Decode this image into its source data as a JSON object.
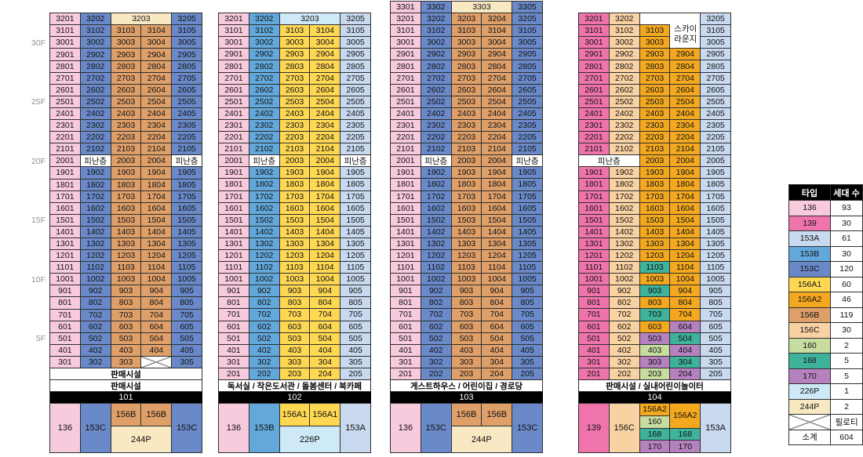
{
  "canvas": {
    "background": "#FFFFFF"
  },
  "colors": {
    "136": "#F8CADD",
    "139": "#EF74AB",
    "153A": "#C9D9F0",
    "153B": "#63A8DB",
    "153C": "#6A89C8",
    "156A1": "#FFD853",
    "156A2": "#F3A81F",
    "156B": "#DE9F69",
    "156C": "#F9D2A3",
    "160": "#C7DC9F",
    "168": "#3EB29B",
    "170": "#B681BF",
    "226P": "#CEE9F8",
    "244P": "#F9E9C3",
    "REF": "#FFFFFF"
  },
  "floor_axis": {
    "labels": [
      {
        "text": "30F",
        "floor": 30
      },
      {
        "text": "25F",
        "floor": 25
      },
      {
        "text": "20F",
        "floor": 20
      },
      {
        "text": "15F",
        "floor": 15
      },
      {
        "text": "10F",
        "floor": 10
      },
      {
        "text": "5F",
        "floor": 5
      }
    ]
  },
  "refuge_label": "피난층",
  "buildings": [
    {
      "id": "101",
      "top_floor": 32,
      "amenities": [
        "판매시설",
        "판매시설"
      ],
      "rows": [
        [
          "3201|136",
          "3202|153C",
          "3203|244P|2",
          "3205|153C"
        ],
        [
          "3101|136",
          "3102|153C",
          "3103|156B",
          "3104|156B",
          "3105|153C"
        ],
        [
          "3001|136",
          "3002|153C",
          "3003|156B",
          "3004|156B",
          "3005|153C"
        ],
        [
          "2901|136",
          "2902|153C",
          "2903|156B",
          "2904|156B",
          "2905|153C"
        ],
        [
          "2801|136",
          "2802|153C",
          "2803|156B",
          "2804|156B",
          "2805|153C"
        ],
        [
          "2701|136",
          "2702|153C",
          "2703|156B",
          "2704|156B",
          "2705|153C"
        ],
        [
          "2601|136",
          "2602|153C",
          "2603|156B",
          "2604|156B",
          "2605|153C"
        ],
        [
          "2501|136",
          "2502|153C",
          "2503|156B",
          "2504|156B",
          "2505|153C"
        ],
        [
          "2401|136",
          "2402|153C",
          "2403|156B",
          "2404|156B",
          "2405|153C"
        ],
        [
          "2301|136",
          "2302|153C",
          "2303|156B",
          "2304|156B",
          "2305|153C"
        ],
        [
          "2201|136",
          "2202|153C",
          "2203|156B",
          "2204|156B",
          "2205|153C"
        ],
        [
          "2101|136",
          "2102|153C",
          "2103|156B",
          "2104|156B",
          "2105|153C"
        ],
        [
          "2001|136",
          "피난층|REF",
          "2003|156B",
          "2004|156B",
          "피난층|REF"
        ],
        [
          "1901|136",
          "1902|153C",
          "1903|156B",
          "1904|156B",
          "1905|153C"
        ],
        [
          "1801|136",
          "1802|153C",
          "1803|156B",
          "1804|156B",
          "1805|153C"
        ],
        [
          "1701|136",
          "1702|153C",
          "1703|156B",
          "1704|156B",
          "1705|153C"
        ],
        [
          "1601|136",
          "1602|153C",
          "1603|156B",
          "1604|156B",
          "1605|153C"
        ],
        [
          "1501|136",
          "1502|153C",
          "1503|156B",
          "1504|156B",
          "1505|153C"
        ],
        [
          "1401|136",
          "1402|153C",
          "1403|156B",
          "1404|156B",
          "1405|153C"
        ],
        [
          "1301|136",
          "1302|153C",
          "1303|156B",
          "1304|156B",
          "1305|153C"
        ],
        [
          "1201|136",
          "1202|153C",
          "1203|156B",
          "1204|156B",
          "1205|153C"
        ],
        [
          "1101|136",
          "1102|153C",
          "1103|156B",
          "1104|156B",
          "1105|153C"
        ],
        [
          "1001|136",
          "1002|153C",
          "1003|156B",
          "1004|156B",
          "1005|153C"
        ],
        [
          "901|136",
          "902|153C",
          "903|156B",
          "904|156B",
          "905|153C"
        ],
        [
          "801|136",
          "802|153C",
          "803|156B",
          "804|156B",
          "805|153C"
        ],
        [
          "701|136",
          "702|153C",
          "703|156B",
          "704|156B",
          "705|153C"
        ],
        [
          "601|136",
          "602|153C",
          "603|156B",
          "604|156B",
          "605|153C"
        ],
        [
          "501|136",
          "502|153C",
          "503|156B",
          "504|156B",
          "505|153C"
        ],
        [
          "401|136",
          "402|153C",
          "403|156B",
          "404|156B",
          "405|153C"
        ],
        [
          "301|136",
          "302|153C",
          "303|156B",
          "|X",
          "305|153C"
        ]
      ],
      "bottom": {
        "kind": "split",
        "c1": "136",
        "c2": "153C",
        "mid_top": [
          "156B",
          "156B"
        ],
        "mid_bottom": "244P",
        "c5": "153C"
      }
    },
    {
      "id": "102",
      "top_floor": 32,
      "amenities": [
        "독서실 / 작은도서관 / 돌봄센터 / 북카페"
      ],
      "rows": [
        [
          "3201|136",
          "3202|153B",
          "3203|226P|2",
          "3205|153A"
        ],
        [
          "3101|136",
          "3102|153B",
          "3103|156A1",
          "3104|156A1",
          "3105|153A"
        ],
        [
          "3001|136",
          "3002|153B",
          "3003|156A1",
          "3004|156A1",
          "3005|153A"
        ],
        [
          "2901|136",
          "2902|153B",
          "2903|156A1",
          "2904|156A1",
          "2905|153A"
        ],
        [
          "2801|136",
          "2802|153B",
          "2803|156A1",
          "2804|156A1",
          "2805|153A"
        ],
        [
          "2701|136",
          "2702|153B",
          "2703|156A1",
          "2704|156A1",
          "2705|153A"
        ],
        [
          "2601|136",
          "2602|153B",
          "2603|156A1",
          "2604|156A1",
          "2605|153A"
        ],
        [
          "2501|136",
          "2502|153B",
          "2503|156A1",
          "2504|156A1",
          "2505|153A"
        ],
        [
          "2401|136",
          "2402|153B",
          "2403|156A1",
          "2404|156A1",
          "2405|153A"
        ],
        [
          "2301|136",
          "2302|153B",
          "2303|156A1",
          "2304|156A1",
          "2305|153A"
        ],
        [
          "2201|136",
          "2202|153B",
          "2203|156A1",
          "2204|156A1",
          "2205|153A"
        ],
        [
          "2101|136",
          "2102|153B",
          "2103|156A1",
          "2104|156A1",
          "2105|153A"
        ],
        [
          "2001|136",
          "피난층|REF",
          "2003|156A1",
          "2004|156A1",
          "피난층|REF"
        ],
        [
          "1901|136",
          "1902|153B",
          "1903|156A1",
          "1904|156A1",
          "1905|153A"
        ],
        [
          "1801|136",
          "1802|153B",
          "1803|156A1",
          "1804|156A1",
          "1805|153A"
        ],
        [
          "1701|136",
          "1702|153B",
          "1703|156A1",
          "1704|156A1",
          "1705|153A"
        ],
        [
          "1601|136",
          "1602|153B",
          "1603|156A1",
          "1604|156A1",
          "1605|153A"
        ],
        [
          "1501|136",
          "1502|153B",
          "1503|156A1",
          "1504|156A1",
          "1505|153A"
        ],
        [
          "1401|136",
          "1402|153B",
          "1403|156A1",
          "1404|156A1",
          "1405|153A"
        ],
        [
          "1301|136",
          "1302|153B",
          "1303|156A1",
          "1304|156A1",
          "1305|153A"
        ],
        [
          "1201|136",
          "1202|153B",
          "1203|156A1",
          "1204|156A1",
          "1205|153A"
        ],
        [
          "1101|136",
          "1102|153B",
          "1103|156A1",
          "1104|156A1",
          "1105|153A"
        ],
        [
          "1001|136",
          "1002|153B",
          "1003|156A1",
          "1004|156A1",
          "1005|153A"
        ],
        [
          "901|136",
          "902|153B",
          "903|156A1",
          "904|156A1",
          "905|153A"
        ],
        [
          "801|136",
          "802|153B",
          "803|156A1",
          "804|156A1",
          "805|153A"
        ],
        [
          "701|136",
          "702|153B",
          "703|156A1",
          "704|156A1",
          "705|153A"
        ],
        [
          "601|136",
          "602|153B",
          "603|156A1",
          "604|156A1",
          "605|153A"
        ],
        [
          "501|136",
          "502|153B",
          "503|156A1",
          "504|156A1",
          "505|153A"
        ],
        [
          "401|136",
          "402|153B",
          "403|156A1",
          "404|156A1",
          "405|153A"
        ],
        [
          "301|136",
          "302|153B",
          "303|156A1",
          "304|156A1",
          "305|153A"
        ],
        [
          "201|136",
          "202|153B",
          "203|156A1",
          "204|156A1",
          "205|153A"
        ]
      ],
      "bottom": {
        "kind": "split",
        "c1": "136",
        "c2": "153B",
        "mid_top": [
          "156A1",
          "156A1"
        ],
        "mid_bottom": "226P",
        "c5": "153A"
      }
    },
    {
      "id": "103",
      "top_floor": 33,
      "amenities": [
        "게스트하우스 / 어린이집 / 경로당"
      ],
      "rows": [
        [
          "3301|136",
          "3302|153C",
          "3303|244P|2",
          "3305|153C"
        ],
        [
          "3201|136",
          "3202|153C",
          "3203|156B",
          "3204|156B",
          "3205|153C"
        ],
        [
          "3101|136",
          "3102|153C",
          "3103|156B",
          "3104|156B",
          "3105|153C"
        ],
        [
          "3001|136",
          "3002|153C",
          "3003|156B",
          "3004|156B",
          "3005|153C"
        ],
        [
          "2901|136",
          "2902|153C",
          "2903|156B",
          "2904|156B",
          "2905|153C"
        ],
        [
          "2801|136",
          "2802|153C",
          "2803|156B",
          "2804|156B",
          "2805|153C"
        ],
        [
          "2701|136",
          "2702|153C",
          "2703|156B",
          "2704|156B",
          "2705|153C"
        ],
        [
          "2601|136",
          "2602|153C",
          "2603|156B",
          "2604|156B",
          "2605|153C"
        ],
        [
          "2501|136",
          "2502|153C",
          "2503|156B",
          "2504|156B",
          "2505|153C"
        ],
        [
          "2401|136",
          "2402|153C",
          "2403|156B",
          "2404|156B",
          "2405|153C"
        ],
        [
          "2301|136",
          "2302|153C",
          "2303|156B",
          "2304|156B",
          "2305|153C"
        ],
        [
          "2201|136",
          "2202|153C",
          "2203|156B",
          "2204|156B",
          "2205|153C"
        ],
        [
          "2101|136",
          "2102|153C",
          "2103|156B",
          "2104|156B",
          "2105|153C"
        ],
        [
          "2001|136",
          "피난층|REF",
          "2003|156B",
          "2004|156B",
          "피난층|REF"
        ],
        [
          "1901|136",
          "1902|153C",
          "1903|156B",
          "1904|156B",
          "1905|153C"
        ],
        [
          "1801|136",
          "1802|153C",
          "1803|156B",
          "1804|156B",
          "1805|153C"
        ],
        [
          "1701|136",
          "1702|153C",
          "1703|156B",
          "1704|156B",
          "1705|153C"
        ],
        [
          "1601|136",
          "1602|153C",
          "1603|156B",
          "1604|156B",
          "1605|153C"
        ],
        [
          "1501|136",
          "1502|153C",
          "1503|156B",
          "1504|156B",
          "1505|153C"
        ],
        [
          "1401|136",
          "1402|153C",
          "1403|156B",
          "1404|156B",
          "1405|153C"
        ],
        [
          "1301|136",
          "1302|153C",
          "1303|156B",
          "1304|156B",
          "1305|153C"
        ],
        [
          "1201|136",
          "1202|153C",
          "1203|156B",
          "1204|156B",
          "1205|153C"
        ],
        [
          "1101|136",
          "1102|153C",
          "1103|156B",
          "1104|156B",
          "1105|153C"
        ],
        [
          "1001|136",
          "1002|153C",
          "1003|156B",
          "1004|156B",
          "1005|153C"
        ],
        [
          "901|136",
          "902|153C",
          "903|156B",
          "904|156B",
          "905|153C"
        ],
        [
          "801|136",
          "802|153C",
          "803|156B",
          "804|156B",
          "805|153C"
        ],
        [
          "701|136",
          "702|153C",
          "703|156B",
          "704|156B",
          "705|153C"
        ],
        [
          "601|136",
          "602|153C",
          "603|156B",
          "604|156B",
          "605|153C"
        ],
        [
          "501|136",
          "502|153C",
          "503|156B",
          "504|156B",
          "505|153C"
        ],
        [
          "401|136",
          "402|153C",
          "403|156B",
          "404|156B",
          "405|153C"
        ],
        [
          "301|136",
          "302|153C",
          "303|156B",
          "304|156B",
          "305|153C"
        ],
        [
          "201|136",
          "202|153C",
          "203|156B",
          "204|156B",
          "205|153C"
        ]
      ],
      "bottom": {
        "kind": "split",
        "c1": "136",
        "c2": "153C",
        "mid_top": [
          "156B",
          "156B"
        ],
        "mid_bottom": "244P",
        "c5": "153C"
      }
    },
    {
      "id": "104",
      "top_floor": 32,
      "amenities": [
        "판매시설 / 실내어린이놀이터"
      ],
      "lounge": {
        "label": "스카이 라운지",
        "lines": [
          "스카이",
          "라운지"
        ]
      },
      "rows": [
        [
          "3201|139",
          "3202|156C",
          "|LGA",
          "|LGB",
          "3205|153A"
        ],
        [
          "3101|139",
          "3102|156C",
          "3103|156A2",
          "|LGB",
          "3105|153A"
        ],
        [
          "3001|139",
          "3002|156C",
          "3003|156A2",
          "|LGW",
          "3005|153A"
        ],
        [
          "2901|139",
          "2902|156C",
          "2903|156A2",
          "2904|156A2",
          "2905|153A"
        ],
        [
          "2801|139",
          "2802|156C",
          "2803|156A2",
          "2804|156A2",
          "2805|153A"
        ],
        [
          "2701|139",
          "2702|156C",
          "2703|156A2",
          "2704|156A2",
          "2705|153A"
        ],
        [
          "2601|139",
          "2602|156C",
          "2603|156A2",
          "2604|156A2",
          "2605|153A"
        ],
        [
          "2501|139",
          "2502|156C",
          "2503|156A2",
          "2504|156A2",
          "2505|153A"
        ],
        [
          "2401|139",
          "2402|156C",
          "2403|156A2",
          "2404|156A2",
          "2405|153A"
        ],
        [
          "2301|139",
          "2302|156C",
          "2303|156A2",
          "2304|156A2",
          "2305|153A"
        ],
        [
          "2201|139",
          "2202|156C",
          "2203|156A2",
          "2204|156A2",
          "2205|153A"
        ],
        [
          "2101|139",
          "2102|156C",
          "2103|156A2",
          "2104|156A2",
          "2105|153A"
        ],
        [
          "피난층|REF|2",
          "2003|156A2",
          "2004|156A2",
          "2005|153A"
        ],
        [
          "1901|139",
          "1902|156C",
          "1903|156A2",
          "1904|156A2",
          "1905|153A"
        ],
        [
          "1801|139",
          "1802|156C",
          "1803|156A2",
          "1804|156A2",
          "1805|153A"
        ],
        [
          "1701|139",
          "1702|156C",
          "1703|156A2",
          "1704|156A2",
          "1705|153A"
        ],
        [
          "1601|139",
          "1602|156C",
          "1603|156A2",
          "1604|156A2",
          "1605|153A"
        ],
        [
          "1501|139",
          "1502|156C",
          "1503|156A2",
          "1504|156A2",
          "1505|153A"
        ],
        [
          "1401|139",
          "1402|156C",
          "1403|156A2",
          "1404|156A2",
          "1405|153A"
        ],
        [
          "1301|139",
          "1302|156C",
          "1303|156A2",
          "1304|156A2",
          "1305|153A"
        ],
        [
          "1201|139",
          "1202|156C",
          "1203|156A2",
          "1204|156A2",
          "1205|153A"
        ],
        [
          "1101|139",
          "1102|156C",
          "1103|168",
          "1104|156A2",
          "1105|153A"
        ],
        [
          "1001|139",
          "1002|156C",
          "1003|156A2",
          "1004|156A2",
          "1005|153A"
        ],
        [
          "901|139",
          "902|156C",
          "903|168",
          "904|156A2",
          "905|153A"
        ],
        [
          "801|139",
          "802|156C",
          "803|156A2",
          "804|156A2",
          "805|153A"
        ],
        [
          "701|139",
          "702|156C",
          "703|168",
          "704|156A2",
          "705|153A"
        ],
        [
          "601|139",
          "602|156C",
          "603|156A2",
          "604|170",
          "605|153A"
        ],
        [
          "501|139",
          "502|156C",
          "503|170",
          "504|168",
          "505|153A"
        ],
        [
          "401|139",
          "402|156C",
          "403|160",
          "404|170",
          "405|153A"
        ],
        [
          "301|139",
          "302|156C",
          "303|170",
          "304|168",
          "305|153A"
        ],
        [
          "201|139",
          "202|156C",
          "203|160",
          "204|170",
          "205|153A"
        ]
      ],
      "bottom": {
        "kind": "stack",
        "c1": "139",
        "c2": "156C",
        "c3_stack": [
          "156A2",
          "160",
          "168",
          "170"
        ],
        "c4_stack": [
          [
            "156A2",
            2
          ],
          [
            "168",
            1
          ],
          [
            "170",
            1
          ]
        ],
        "c5": "153A"
      }
    }
  ],
  "legend": {
    "header": [
      "타입",
      "세대 수"
    ],
    "rows": [
      [
        "136",
        "93"
      ],
      [
        "139",
        "30"
      ],
      [
        "153A",
        "61"
      ],
      [
        "153B",
        "30"
      ],
      [
        "153C",
        "120"
      ],
      [
        "156A1",
        "60"
      ],
      [
        "156A2",
        "46"
      ],
      [
        "156B",
        "119"
      ],
      [
        "156C",
        "30"
      ],
      [
        "160",
        "2"
      ],
      [
        "168",
        "5"
      ],
      [
        "170",
        "5"
      ],
      [
        "226P",
        "1"
      ],
      [
        "244P",
        "2"
      ]
    ],
    "piloti_label": "필로티",
    "total": [
      "소계",
      "604"
    ]
  }
}
